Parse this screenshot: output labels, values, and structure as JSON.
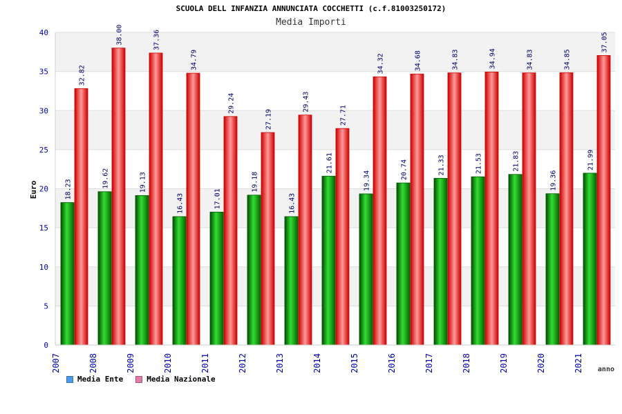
{
  "chart_data": {
    "type": "bar",
    "title": "SCUOLA DELL INFANZIA ANNUNCIATA COCCHETTI (c.f.81003250172)",
    "subtitle": "Media Importi",
    "xlabel": "anno",
    "ylabel": "Euro",
    "ylim": [
      0,
      40
    ],
    "yticks": [
      "0",
      "5",
      "10",
      "15",
      "20",
      "25",
      "30",
      "35",
      "40"
    ],
    "categories": [
      "2007",
      "2008",
      "2009",
      "2010",
      "2011",
      "2012",
      "2013",
      "2014",
      "2015",
      "2016",
      "2017",
      "2018",
      "2019",
      "2020",
      "2021"
    ],
    "series": [
      {
        "name": "Media Ente",
        "values": [
          18.23,
          19.62,
          19.13,
          16.43,
          17.01,
          19.18,
          16.43,
          21.61,
          19.34,
          20.74,
          21.33,
          21.53,
          21.83,
          19.36,
          21.99
        ],
        "labels": [
          "18.23",
          "19.62",
          "19.13",
          "16.43",
          "17.01",
          "19.18",
          "16.43",
          "21.61",
          "19.34",
          "20.74",
          "21.33",
          "21.53",
          "21.83",
          "19.36",
          "21.99"
        ]
      },
      {
        "name": "Media Nazionale",
        "values": [
          32.82,
          38.0,
          37.36,
          34.79,
          29.24,
          27.19,
          29.43,
          27.71,
          34.32,
          34.68,
          34.83,
          34.94,
          34.83,
          34.85,
          37.05
        ],
        "labels": [
          "32.82",
          "38.00",
          "37.36",
          "34.79",
          "29.24",
          "27.19",
          "29.43",
          "27.71",
          "34.32",
          "34.68",
          "34.83",
          "34.94",
          "34.83",
          "34.85",
          "37.05"
        ]
      }
    ],
    "legend": "bottom-left"
  },
  "colors": {
    "ente_dark": "#006600",
    "ente_light": "#33dd33",
    "naz_dark": "#cc0000",
    "naz_light": "#ff9999",
    "axis_text": "#0000aa",
    "label_text": "#000066"
  }
}
